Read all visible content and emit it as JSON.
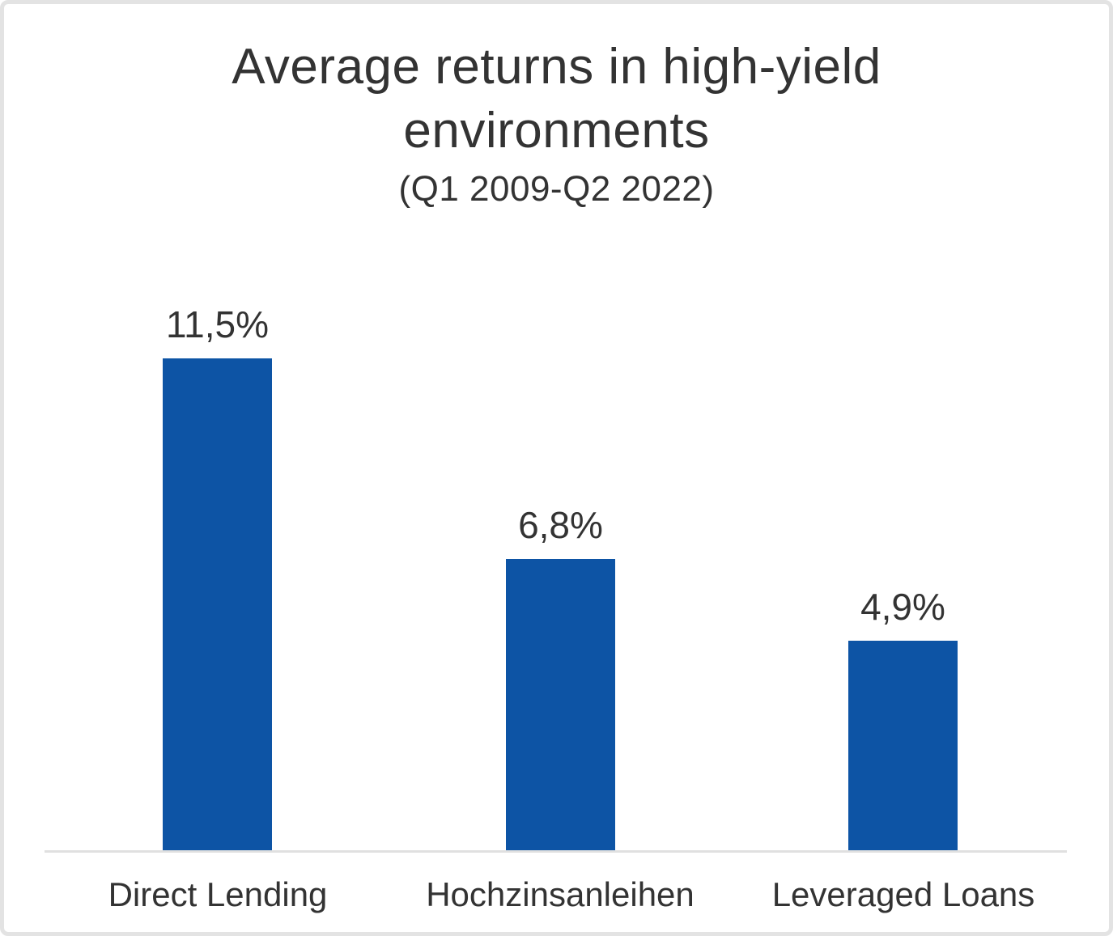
{
  "title": "Average returns in high-yield environments",
  "subtitle": "(Q1 2009-Q2 2022)",
  "colors": {
    "text": "#333333",
    "axis_line": "#e0e0e0",
    "border": "#e3e3e3",
    "background": "#ffffff",
    "bar": "#0d54a5"
  },
  "chart_data": {
    "type": "bar",
    "title": "Average returns in high-yield environments",
    "subtitle": "(Q1 2009-Q2 2022)",
    "categories": [
      "Direct Lending",
      "Hochzinsanleihen",
      "Leveraged Loans"
    ],
    "values": [
      11.5,
      6.8,
      4.9
    ],
    "value_labels": [
      "11,5%",
      "6,8%",
      "4,9%"
    ],
    "bar_color": "#0d54a5",
    "xlabel": "",
    "ylabel": "",
    "ylim": [
      0,
      11.5
    ],
    "grid": false,
    "legend": false,
    "axis_baseline_only": true
  }
}
